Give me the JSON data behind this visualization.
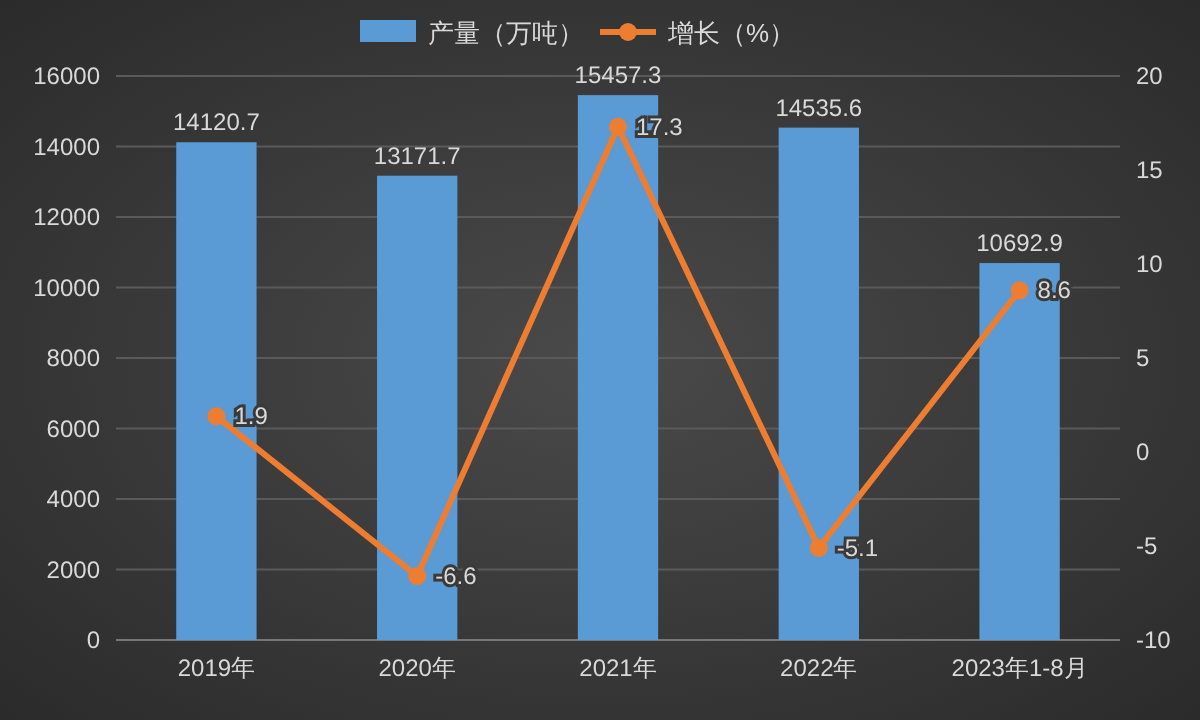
{
  "chart_data": {
    "type": "bar",
    "categories": [
      "2019年",
      "2020年",
      "2021年",
      "2022年",
      "2023年1-8月"
    ],
    "series": [
      {
        "name": "产量（万吨）",
        "color": "#5b9bd5",
        "values": [
          14120.7,
          13171.7,
          15457.3,
          14535.6,
          10692.9
        ]
      },
      {
        "name": "增长（%）",
        "type": "line",
        "axis": "y2",
        "color": "#ed7d31",
        "values": [
          1.9,
          -6.6,
          17.3,
          -5.1,
          8.6
        ]
      }
    ],
    "ylim": [
      0,
      16000
    ],
    "yticks": [
      0,
      2000,
      4000,
      6000,
      8000,
      10000,
      12000,
      14000,
      16000
    ],
    "y2lim": [
      -10,
      20
    ],
    "y2ticks": [
      -10,
      -5,
      0,
      5,
      10,
      15,
      20
    ],
    "grid": "y",
    "legend": "top",
    "marker": "circle",
    "data_labels": true
  }
}
